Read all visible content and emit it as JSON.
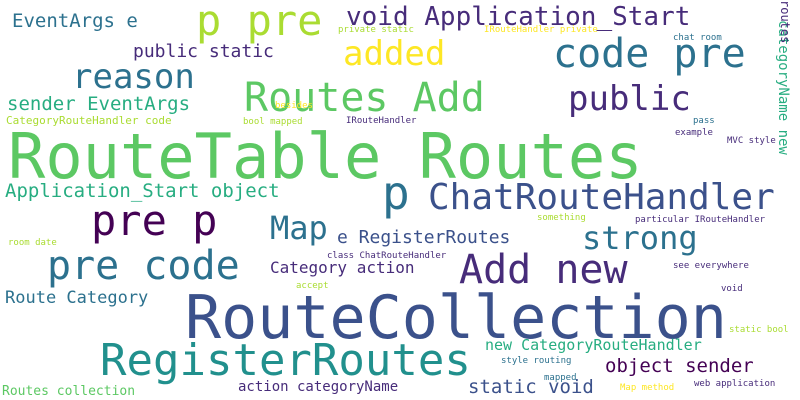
{
  "palette": {
    "purple_dark": "#440154",
    "indigo": "#472c7a",
    "blue_dark": "#3b518b",
    "blue": "#2c718e",
    "teal": "#21908d",
    "green_teal": "#27ad81",
    "green": "#5cc863",
    "lime": "#aadc32",
    "yellow": "#fde725"
  },
  "words": [
    "RouteTable Routes",
    "RouteCollection",
    "RegisterRoutes",
    "p pre",
    "code pre",
    "Routes Add",
    "ChatRouteHandler",
    "pre code",
    "Add new",
    "pre p",
    "p",
    "void Application_Start",
    "reason",
    "added",
    "public",
    "strong",
    "Map",
    "EventArgs e",
    "public static",
    "sender EventArgs",
    "Application_Start object",
    "e RegisterRoutes",
    "Category action",
    "Route Category",
    "object sender",
    "static void",
    "new CategoryRouteHandler",
    "action categoryName",
    "Routes collection",
    "categoryName new",
    "routes",
    "private static",
    "IRouteHandler private",
    "chat room",
    "CategoryRouteHandler code",
    "bool mapped",
    "IRouteHandler",
    "besides",
    "pass",
    "example",
    "MVC style",
    "something",
    "particular IRouteHandler",
    "room date",
    "class ChatRouteHandler",
    "see everywhere",
    "accept",
    "void",
    "static bool",
    "style routing",
    "mapped",
    "Map method",
    "web application"
  ]
}
